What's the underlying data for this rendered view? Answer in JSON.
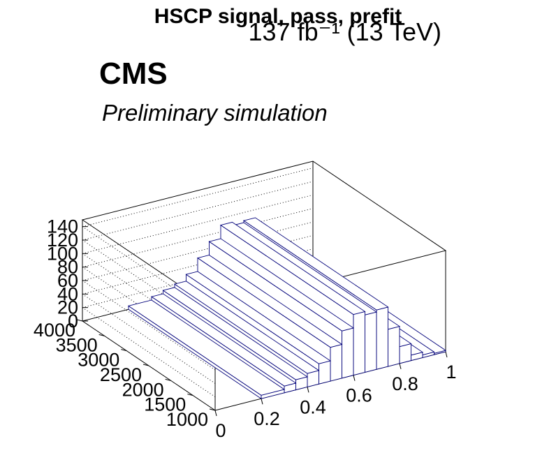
{
  "title": "HSCP signal, pass, prefit",
  "lumi_label": "137 fb⁻¹ (13 TeV)",
  "experiment": "CMS",
  "status": "Preliminary simulation",
  "chart_data": {
    "type": "lego",
    "title": "HSCP signal, pass, prefit",
    "xlabel": "",
    "ylabel": "",
    "zlabel": "",
    "xlim": [
      0,
      1
    ],
    "ylim": [
      1000,
      4000
    ],
    "zlim": [
      0,
      150
    ],
    "x_ticks": [
      "0",
      "0.2",
      "0.4",
      "0.6",
      "0.8",
      "1"
    ],
    "y_ticks": [
      "1000",
      "1500",
      "2000",
      "2500",
      "3000",
      "3500",
      "4000"
    ],
    "z_ticks": [
      "0",
      "20",
      "40",
      "60",
      "80",
      "100",
      "120",
      "140"
    ],
    "grid": true,
    "bar_color": "#00007a",
    "x_bin_edges": [
      0,
      0.1,
      0.2,
      0.3,
      0.35,
      0.4,
      0.45,
      0.5,
      0.55,
      0.6,
      0.65,
      0.7,
      0.75,
      0.8,
      0.85,
      0.9,
      0.95,
      1.0
    ],
    "y_bin_edges": [
      1000,
      4000
    ],
    "values": [
      0,
      0,
      5,
      10,
      15,
      20,
      30,
      50,
      70,
      90,
      85,
      88,
      55,
      25,
      8,
      4,
      2
    ]
  }
}
